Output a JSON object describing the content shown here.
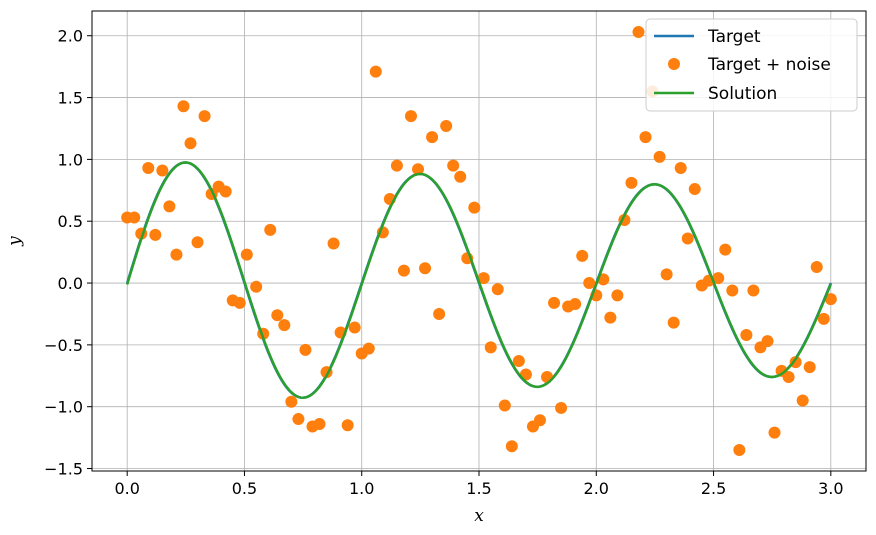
{
  "chart_data": {
    "type": "line",
    "xlabel": "x",
    "ylabel": "y",
    "xlim": [
      -0.15,
      3.15
    ],
    "ylim": [
      -1.52,
      2.2
    ],
    "x_ticks": [
      0.0,
      0.5,
      1.0,
      1.5,
      2.0,
      2.5,
      3.0
    ],
    "x_tick_labels": [
      "0.0",
      "0.5",
      "1.0",
      "1.5",
      "2.0",
      "2.5",
      "3.0"
    ],
    "y_ticks": [
      -1.5,
      -1.0,
      -0.5,
      0.0,
      0.5,
      1.0,
      1.5,
      2.0
    ],
    "y_tick_labels": [
      "−1.5",
      "−1.0",
      "−0.5",
      "0.0",
      "0.5",
      "1.0",
      "1.5",
      "2.0"
    ],
    "grid": true,
    "legend_position": "top-right",
    "colors": {
      "target": "#1f77b4",
      "noise": "#ff7f0e",
      "solution": "#2ca02c"
    },
    "series": [
      {
        "name": "Target",
        "style": "line",
        "function": "exp(-0.1 x) sin(2 pi x)",
        "x_range": [
          0,
          3
        ]
      },
      {
        "name": "Target + noise",
        "style": "markers",
        "x": [
          0.0,
          0.03,
          0.06,
          0.09,
          0.12,
          0.15,
          0.18,
          0.21,
          0.24,
          0.27,
          0.3,
          0.33,
          0.36,
          0.39,
          0.42,
          0.45,
          0.48,
          0.51,
          0.55,
          0.58,
          0.61,
          0.64,
          0.67,
          0.7,
          0.73,
          0.76,
          0.79,
          0.82,
          0.85,
          0.88,
          0.91,
          0.94,
          0.97,
          1.0,
          1.03,
          1.06,
          1.09,
          1.12,
          1.15,
          1.18,
          1.21,
          1.24,
          1.27,
          1.3,
          1.33,
          1.36,
          1.39,
          1.42,
          1.45,
          1.48,
          1.52,
          1.55,
          1.58,
          1.61,
          1.64,
          1.67,
          1.7,
          1.73,
          1.76,
          1.79,
          1.82,
          1.85,
          1.88,
          1.91,
          1.94,
          1.97,
          2.0,
          2.03,
          2.06,
          2.09,
          2.12,
          2.15,
          2.18,
          2.21,
          2.24,
          2.27,
          2.3,
          2.33,
          2.36,
          2.39,
          2.42,
          2.45,
          2.48,
          2.52,
          2.55,
          2.58,
          2.61,
          2.64,
          2.67,
          2.7,
          2.73,
          2.76,
          2.79,
          2.82,
          2.85,
          2.88,
          2.91,
          2.94,
          2.97,
          3.0
        ],
        "y": [
          0.53,
          0.53,
          0.4,
          0.93,
          0.39,
          0.91,
          0.62,
          0.23,
          1.43,
          1.13,
          0.33,
          1.35,
          0.72,
          0.78,
          0.74,
          -0.14,
          -0.16,
          0.23,
          -0.03,
          -0.41,
          0.43,
          -0.26,
          -0.34,
          -0.96,
          -1.1,
          -0.54,
          -1.16,
          -1.14,
          -0.72,
          0.32,
          -0.4,
          -1.15,
          -0.36,
          -0.57,
          -0.53,
          1.71,
          0.41,
          0.68,
          0.95,
          0.1,
          1.35,
          0.92,
          0.12,
          1.18,
          -0.25,
          1.27,
          0.95,
          0.86,
          0.2,
          0.61,
          0.04,
          -0.52,
          -0.05,
          -0.99,
          -1.32,
          -0.63,
          -0.74,
          -1.16,
          -1.11,
          -0.76,
          -0.16,
          -1.01,
          -0.19,
          -0.17,
          0.22,
          0.0,
          -0.1,
          0.03,
          -0.28,
          -0.1,
          0.51,
          0.81,
          2.03,
          1.18,
          1.55,
          1.02,
          0.07,
          -0.32,
          0.93,
          0.36,
          0.76,
          -0.02,
          0.02,
          0.04,
          0.27,
          -0.06,
          -1.35,
          -0.42,
          -0.06,
          -0.52,
          -0.47,
          -1.21,
          -0.71,
          -0.76,
          -0.64,
          -0.95,
          -0.68,
          0.13,
          -0.29,
          -0.13
        ]
      },
      {
        "name": "Solution",
        "style": "line",
        "function": "exp(-0.1 x) sin(2 pi x)",
        "x_range": [
          0,
          3
        ]
      }
    ]
  }
}
